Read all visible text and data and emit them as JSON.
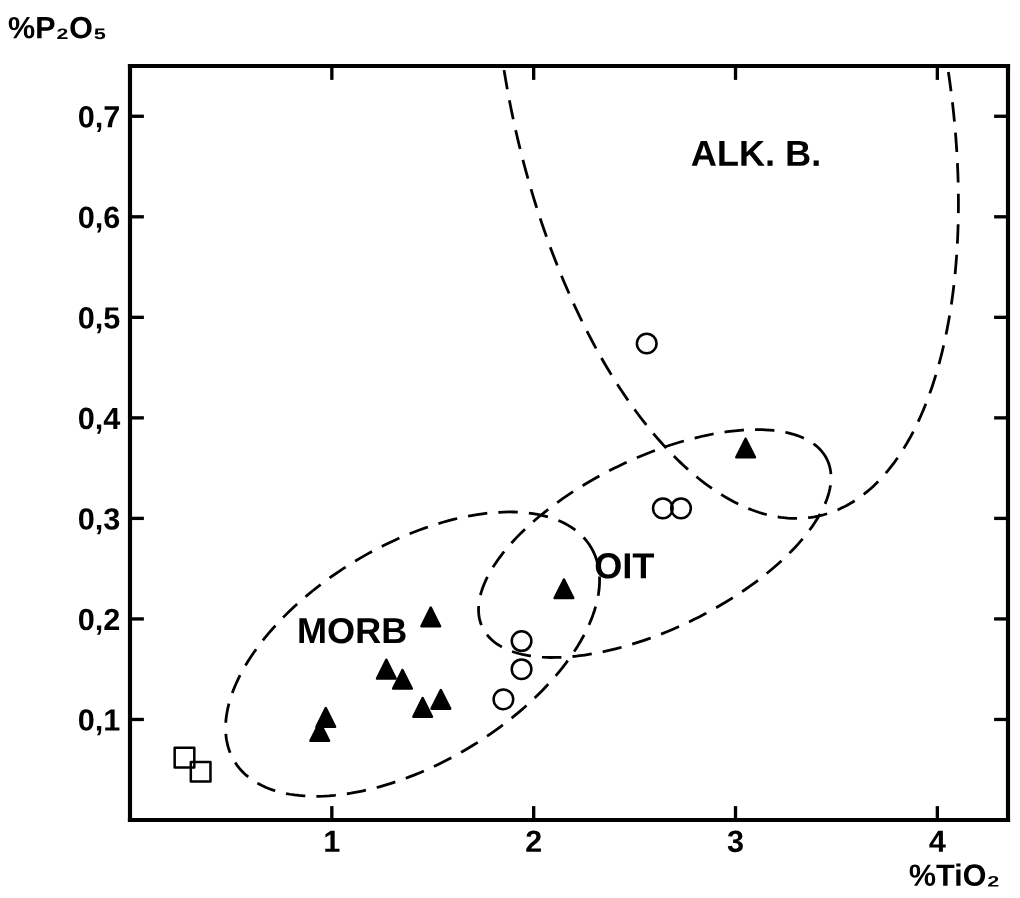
{
  "chart_data": {
    "type": "scatter",
    "xlabel": "%TiO₂",
    "ylabel": "%P₂O₅",
    "xlim": [
      0,
      4.35
    ],
    "ylim": [
      0,
      0.75
    ],
    "xticks": [
      1,
      2,
      3,
      4
    ],
    "yticks": [
      {
        "value": 0.1,
        "label": "0,1"
      },
      {
        "value": 0.2,
        "label": "0,2"
      },
      {
        "value": 0.3,
        "label": "0,3"
      },
      {
        "value": 0.4,
        "label": "0,4"
      },
      {
        "value": 0.5,
        "label": "0,5"
      },
      {
        "value": 0.6,
        "label": "0,6"
      },
      {
        "value": 0.7,
        "label": "0,7"
      }
    ],
    "grid": false,
    "legend": false,
    "series": [
      {
        "color": "#000000",
        "marker": "square",
        "x": [
          0.27,
          0.35
        ],
        "values": [
          0.062,
          0.048
        ]
      },
      {
        "color": "#000000",
        "marker": "triangle",
        "x": [
          0.97,
          0.94,
          1.49,
          1.27,
          1.35,
          1.45,
          1.54,
          2.15,
          3.05
        ],
        "values": [
          0.102,
          0.088,
          0.202,
          0.15,
          0.14,
          0.112,
          0.12,
          0.23,
          0.37
        ]
      },
      {
        "color": "#000000",
        "marker": "circle",
        "x": [
          2.56,
          2.64,
          2.73,
          1.94,
          1.94,
          1.85
        ],
        "values": [
          0.474,
          0.31,
          0.31,
          0.178,
          0.15,
          0.12
        ]
      }
    ],
    "annotations": [
      "MORB",
      "OIT",
      "ALK. B."
    ]
  }
}
